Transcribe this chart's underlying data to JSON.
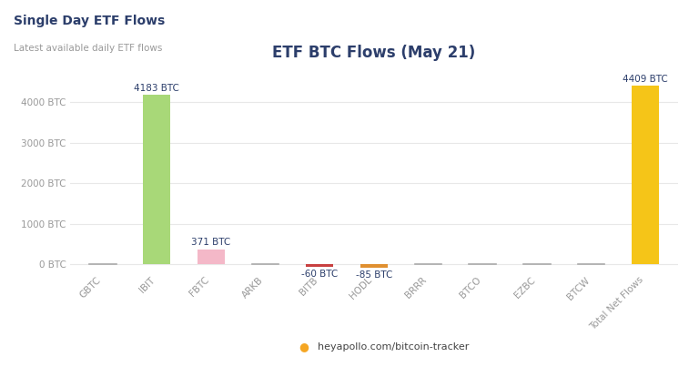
{
  "title": "ETF BTC Flows (May 21)",
  "suptitle": "Single Day ETF Flows",
  "subtitle": "Latest available daily ETF flows",
  "categories": [
    "GBTC",
    "IBIT",
    "FBTC",
    "ARKB",
    "BITB",
    "HODL",
    "BRRR",
    "BTCO",
    "EZBC",
    "BTCW",
    "Total Net Flows"
  ],
  "values": [
    0,
    4183,
    371,
    0,
    -60,
    -85,
    0,
    0,
    0,
    0,
    4409
  ],
  "bar_colors": [
    "#c8c8c8",
    "#a8d878",
    "#f4b8c8",
    "#c8c8c8",
    "#c84040",
    "#e09030",
    "#c8c8c8",
    "#c8c8c8",
    "#c8c8c8",
    "#c8c8c8",
    "#f5c518"
  ],
  "labels": [
    "",
    "4183 BTC",
    "371 BTC",
    "",
    "-60 BTC",
    "-85 BTC",
    "",
    "",
    "",
    "",
    "4409 BTC"
  ],
  "background_color": "#ffffff",
  "plot_bg_color": "#ffffff",
  "grid_color": "#e8e8e8",
  "ylim": [
    -180,
    4800
  ],
  "yticks": [
    0,
    1000,
    2000,
    3000,
    4000
  ],
  "ytick_labels": [
    "0 BTC",
    "1000 BTC",
    "2000 BTC",
    "3000 BTC",
    "4000 BTC"
  ],
  "footer_text": "heyapollo.com/bitcoin-tracker",
  "title_color": "#2c3e6b",
  "axis_color": "#999999",
  "label_fontsize": 7.5,
  "title_fontsize": 12,
  "suptitle_fontsize": 10,
  "subtitle_fontsize": 7.5
}
